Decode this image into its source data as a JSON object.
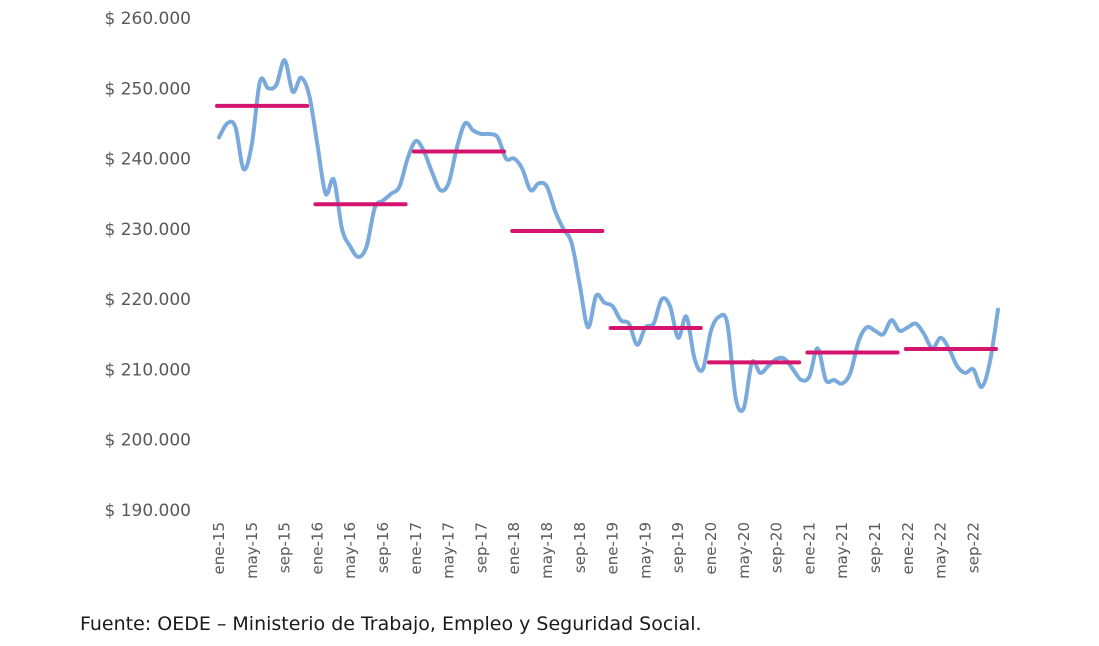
{
  "source_note": "Fuente: OEDE – Ministerio de Trabajo, Empleo y Seguridad Social.",
  "colors": {
    "monthly_line": "#7aaadc",
    "annual_avg": "#d4146e",
    "tick_text": "#595959"
  },
  "chart_data": {
    "type": "line",
    "title": "",
    "xlabel": "",
    "ylabel": "",
    "ylim": [
      190000,
      260000
    ],
    "y_ticks": [
      190000,
      200000,
      210000,
      220000,
      230000,
      240000,
      250000,
      260000
    ],
    "y_tick_labels": [
      "$ 190.000",
      "$ 200.000",
      "$ 210.000",
      "$ 220.000",
      "$ 230.000",
      "$ 240.000",
      "$ 250.000",
      "$ 260.000"
    ],
    "x_tick_labels": [
      "ene-15",
      "may-15",
      "sep-15",
      "ene-16",
      "may-16",
      "sep-16",
      "ene-17",
      "may-17",
      "sep-17",
      "ene-18",
      "may-18",
      "sep-18",
      "ene-19",
      "may-19",
      "sep-19",
      "ene-20",
      "may-20",
      "sep-20",
      "ene-21",
      "may-21",
      "sep-21",
      "ene-22",
      "may-22",
      "sep-22"
    ],
    "grid": false,
    "legend": "none",
    "series": [
      {
        "kind": "monthly",
        "values": [
          243000,
          245000,
          244500,
          238500,
          242000,
          251000,
          250000,
          250500,
          254000,
          249500,
          251500,
          249000,
          242000,
          235000,
          237000,
          230000,
          227500,
          226000,
          227500,
          233000,
          234000,
          235000,
          236000,
          240000,
          242500,
          241000,
          238000,
          235500,
          236500,
          241500,
          245000,
          244000,
          243500,
          243500,
          243000,
          240000,
          240000,
          238500,
          235500,
          236500,
          236000,
          232500,
          230000,
          228000,
          222000,
          216000,
          220500,
          219500,
          219000,
          217000,
          216500,
          213500,
          216000,
          216500,
          220000,
          219000,
          214500,
          217500,
          211500,
          210000,
          215500,
          217500,
          216500,
          206000,
          204500,
          211000,
          209500,
          210500,
          211500,
          211500,
          210000,
          208500,
          209000,
          213000,
          208500,
          208500,
          208000,
          209500,
          214000,
          216000,
          215500,
          215000,
          217000,
          215500,
          216000,
          216500,
          215000,
          213000,
          214500,
          213000,
          210500,
          209500,
          210000,
          207500,
          211000,
          218500
        ]
      },
      {
        "kind": "annual_average",
        "years": [
          2015,
          2016,
          2017,
          2018,
          2019,
          2020,
          2021,
          2022
        ],
        "values": [
          247500,
          233500,
          241000,
          229700,
          215900,
          211000,
          212400,
          212900
        ]
      }
    ]
  }
}
